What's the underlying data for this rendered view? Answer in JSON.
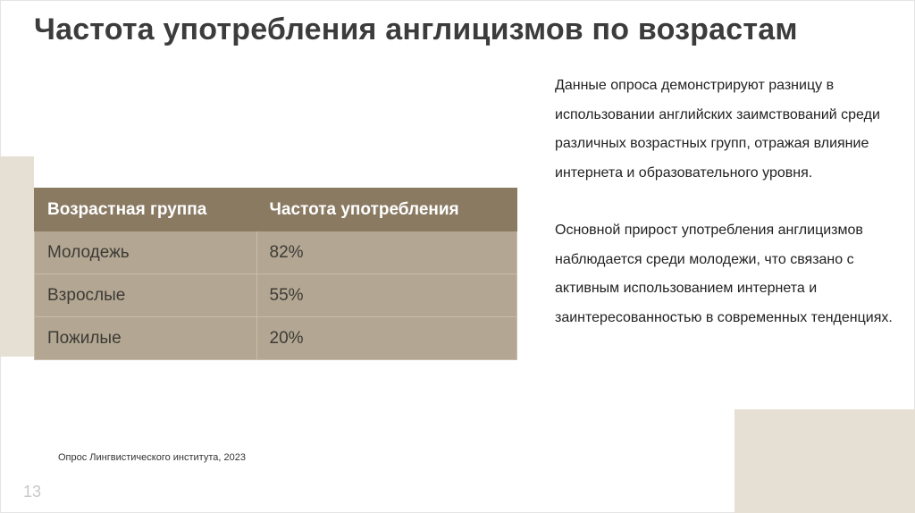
{
  "slide": {
    "title": "Частота употребления англицизмов по возрастам",
    "table": {
      "headers": [
        "Возрастная группа",
        "Частота употребления"
      ],
      "rows": [
        [
          "Молодежь",
          "82%"
        ],
        [
          "Взрослые",
          "55%"
        ],
        [
          "Пожилые",
          "20%"
        ]
      ]
    },
    "description": [
      "Данные опроса демонстрируют разницу в использовании английских заимствований среди различных возрастных групп, отражая влияние интернета и образовательного уровня.",
      "Основной прирост употребления англицизмов наблюдается среди молодежи, что связано с активным использованием интернета и заинтересованностью в современных тенденциях."
    ],
    "source": "Опрос Лингвистического института, 2023",
    "page_number": "13"
  },
  "colors": {
    "header_bg": "#8a7a62",
    "cell_bg": "#b3a793",
    "accent_block": "#e6dfd4",
    "title_text": "#3c3c3c"
  }
}
